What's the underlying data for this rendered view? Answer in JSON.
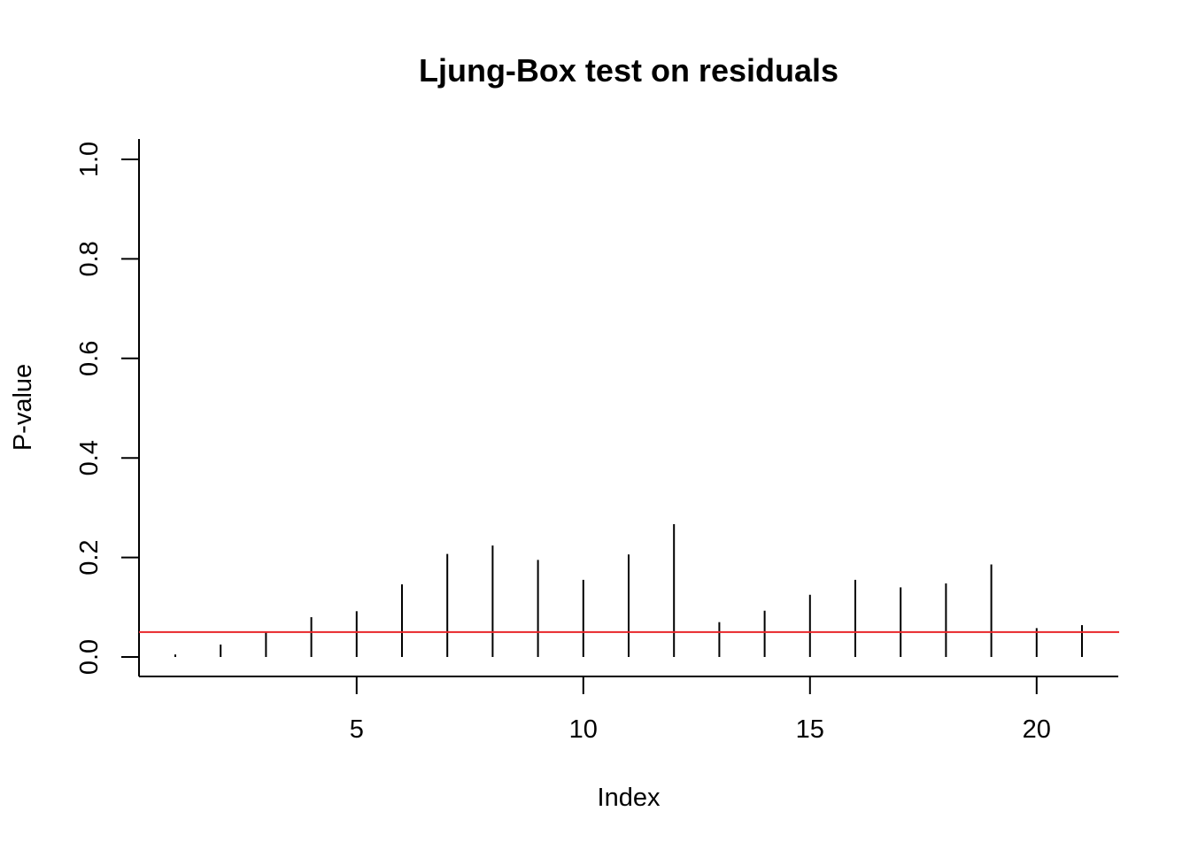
{
  "chart_data": {
    "type": "bar",
    "style": "vertical-lines",
    "title": "Ljung-Box test on residuals",
    "xlabel": "Index",
    "ylabel": "P-value",
    "x": [
      1,
      2,
      3,
      4,
      5,
      6,
      7,
      8,
      9,
      10,
      11,
      12,
      13,
      14,
      15,
      16,
      17,
      18,
      19,
      20,
      21
    ],
    "values": [
      0.005,
      0.025,
      0.05,
      0.08,
      0.092,
      0.146,
      0.207,
      0.224,
      0.195,
      0.155,
      0.206,
      0.267,
      0.07,
      0.093,
      0.125,
      0.155,
      0.14,
      0.148,
      0.186,
      0.058,
      0.064
    ],
    "xlim": [
      1,
      21
    ],
    "ylim": [
      0,
      1
    ],
    "xticks": [
      "5",
      "10",
      "15",
      "20"
    ],
    "yticks": [
      "0.0",
      "0.2",
      "0.4",
      "0.6",
      "0.8",
      "1.0"
    ],
    "reference_line": {
      "y": 0.05,
      "color": "#e8262a"
    },
    "series_color": "#000000",
    "grid": false
  }
}
